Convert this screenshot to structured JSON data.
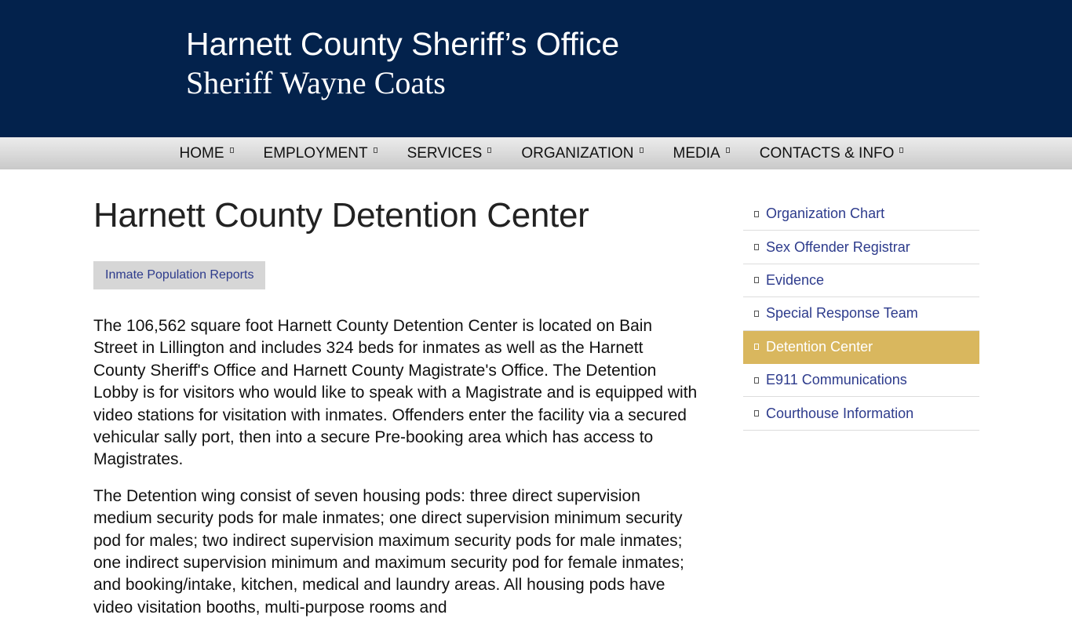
{
  "header": {
    "title": "Harnett County Sheriff’s Office",
    "subtitle": "Sheriff Wayne Coats"
  },
  "nav": [
    {
      "label": "HOME"
    },
    {
      "label": "EMPLOYMENT"
    },
    {
      "label": "SERVICES"
    },
    {
      "label": "ORGANIZATION"
    },
    {
      "label": "MEDIA"
    },
    {
      "label": "CONTACTS & INFO"
    }
  ],
  "main": {
    "title": "Harnett County Detention Center",
    "button": "Inmate Population Reports",
    "paragraphs": [
      "The 106,562 square foot Harnett County Detention Center is located on Bain Street in Lillington and includes 324 beds for inmates as well as the Harnett County Sheriff's Office and Harnett County Magistrate's Office. The Detention Lobby is for visitors who would like to speak with a Magistrate and is equipped with video stations for visitation with inmates. Offenders enter the facility via a secured vehicular sally port, then into a secure Pre-booking area which has access to Magistrates.",
      "The Detention wing consist of seven housing pods: three direct supervision medium security pods for male inmates; one direct supervision minimum security pod for males; two indirect supervision maximum security pods for male inmates; one indirect supervision minimum and maximum security pod for female inmates; and booking/intake, kitchen, medical and laundry areas. All housing pods have video visitation booths, multi-purpose rooms and"
    ]
  },
  "sidebar": [
    {
      "label": "Organization Chart"
    },
    {
      "label": "Sex Offender Registrar"
    },
    {
      "label": "Evidence"
    },
    {
      "label": "Special Response Team"
    },
    {
      "label": "Detention Center",
      "active": true
    },
    {
      "label": "E911 Communications"
    },
    {
      "label": "Courthouse Information"
    }
  ],
  "colors": {
    "header": "#03224c",
    "active": "#d9b75e",
    "link": "#2d3b8c"
  }
}
